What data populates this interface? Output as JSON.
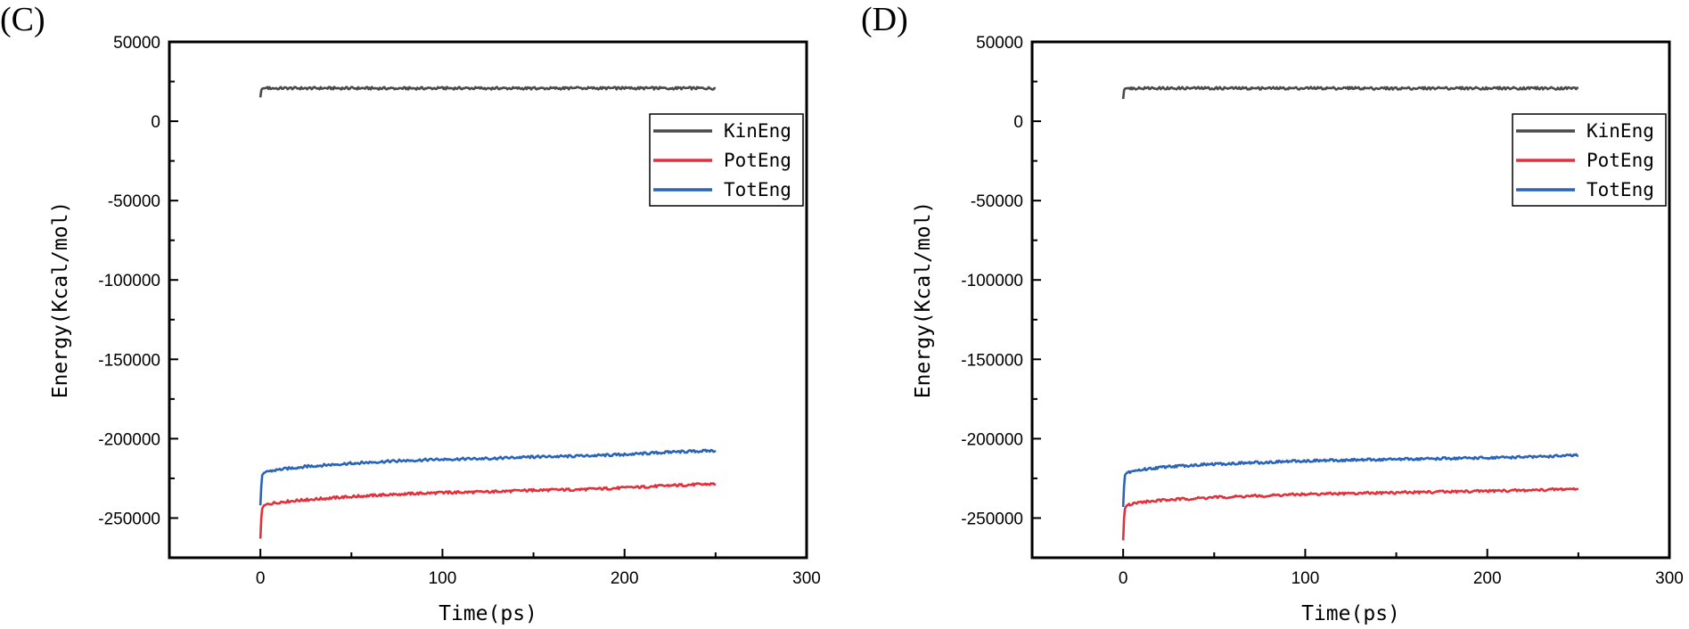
{
  "chart_data": [
    {
      "type": "line",
      "panel_label": "(C)",
      "xlabel": "Time(ps)",
      "ylabel": "Energy(Kcal/mol)",
      "xlim": [
        -50,
        300
      ],
      "ylim": [
        -275000,
        50000
      ],
      "xticks": [
        0,
        100,
        200,
        300
      ],
      "yticks": [
        50000,
        0,
        -50000,
        -100000,
        -150000,
        -200000,
        -250000
      ],
      "grid": false,
      "legend": {
        "position": "top-right"
      },
      "series": [
        {
          "name": "KinEng",
          "color": "#4a4a4a",
          "x": [
            0,
            0.5,
            1,
            2,
            5,
            10,
            25,
            50,
            75,
            100,
            125,
            150,
            175,
            200,
            225,
            250
          ],
          "y": [
            15000,
            19500,
            20500,
            20800,
            20800,
            20800,
            20800,
            20800,
            20700,
            20800,
            20800,
            20700,
            20800,
            20800,
            20800,
            20800
          ]
        },
        {
          "name": "PotEng",
          "color": "#e3313c",
          "x": [
            0,
            0.5,
            1,
            2,
            5,
            10,
            25,
            50,
            75,
            100,
            125,
            150,
            175,
            200,
            225,
            250
          ],
          "y": [
            -263000,
            -250000,
            -244000,
            -242000,
            -241000,
            -240000,
            -238500,
            -236500,
            -235000,
            -234000,
            -233500,
            -232500,
            -232000,
            -231000,
            -229500,
            -228500
          ]
        },
        {
          "name": "TotEng",
          "color": "#2a64b8",
          "x": [
            0,
            0.5,
            1,
            2,
            5,
            10,
            25,
            50,
            75,
            100,
            125,
            150,
            175,
            200,
            225,
            250
          ],
          "y": [
            -242000,
            -230000,
            -223000,
            -221500,
            -220500,
            -219500,
            -217500,
            -215500,
            -214000,
            -213000,
            -212500,
            -211500,
            -211000,
            -210000,
            -208500,
            -207500
          ]
        }
      ]
    },
    {
      "type": "line",
      "panel_label": "(D)",
      "xlabel": "Time(ps)",
      "ylabel": "Energy(Kcal/mol)",
      "xlim": [
        -50,
        300
      ],
      "ylim": [
        -275000,
        50000
      ],
      "xticks": [
        0,
        100,
        200,
        300
      ],
      "yticks": [
        50000,
        0,
        -50000,
        -100000,
        -150000,
        -200000,
        -250000
      ],
      "grid": false,
      "legend": {
        "position": "top-right"
      },
      "series": [
        {
          "name": "KinEng",
          "color": "#4a4a4a",
          "x": [
            0,
            0.5,
            1,
            2,
            5,
            10,
            25,
            50,
            75,
            100,
            125,
            150,
            175,
            200,
            225,
            250
          ],
          "y": [
            14000,
            19500,
            20500,
            20800,
            20800,
            20800,
            20800,
            20800,
            20700,
            20800,
            20800,
            20700,
            20800,
            20800,
            20800,
            20800
          ]
        },
        {
          "name": "PotEng",
          "color": "#e3313c",
          "x": [
            0,
            0.5,
            1,
            2,
            5,
            10,
            25,
            50,
            75,
            100,
            125,
            150,
            175,
            200,
            225,
            250
          ],
          "y": [
            -264000,
            -250000,
            -244000,
            -242000,
            -241000,
            -240000,
            -238500,
            -237000,
            -236000,
            -235000,
            -234500,
            -234000,
            -233500,
            -233000,
            -232500,
            -231500
          ]
        },
        {
          "name": "TotEng",
          "color": "#2a64b8",
          "x": [
            0,
            0.5,
            1,
            2,
            5,
            10,
            25,
            50,
            75,
            100,
            125,
            150,
            175,
            200,
            225,
            250
          ],
          "y": [
            -243000,
            -230000,
            -223000,
            -221500,
            -220500,
            -219500,
            -217500,
            -216000,
            -215000,
            -214000,
            -213500,
            -213000,
            -212500,
            -212000,
            -211500,
            -210500
          ]
        }
      ]
    }
  ]
}
